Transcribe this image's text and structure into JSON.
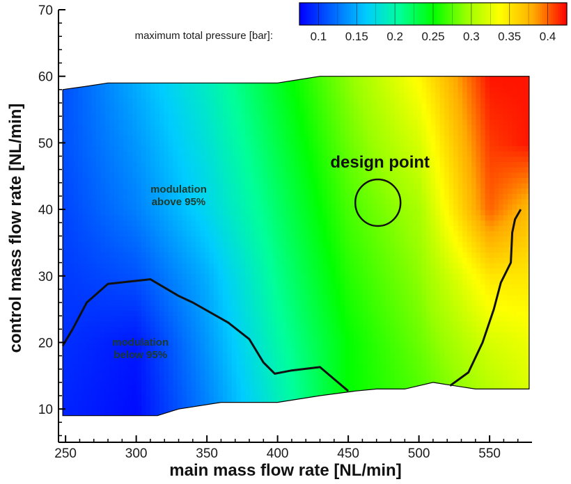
{
  "chart_data": {
    "type": "heatmap",
    "title": "",
    "xlabel": "main mass flow rate [NL/min]",
    "ylabel": "control mass flow rate [NL/min]",
    "xlim": [
      245,
      580
    ],
    "ylim": [
      5,
      70
    ],
    "x_ticks": [
      250,
      300,
      350,
      400,
      450,
      500,
      550
    ],
    "y_ticks": [
      10,
      20,
      30,
      40,
      50,
      60,
      70
    ],
    "colorbar": {
      "title": "maximum total pressure [bar]:",
      "range": [
        0.075,
        0.425
      ],
      "ticks": [
        0.1,
        0.15,
        0.2,
        0.25,
        0.3,
        0.35,
        0.4
      ],
      "tick_labels": [
        "0.1",
        "0.15",
        "0.2",
        "0.25",
        "0.3",
        "0.35",
        "0.4"
      ],
      "colormap": [
        "#0000ff",
        "#0066ff",
        "#00ccff",
        "#00ff99",
        "#00ff00",
        "#99ff00",
        "#ffff00",
        "#ffaa00",
        "#ff0000"
      ]
    },
    "domain_boundary": [
      [
        248,
        58
      ],
      [
        265,
        58.5
      ],
      [
        280,
        59
      ],
      [
        350,
        59
      ],
      [
        400,
        59
      ],
      [
        415,
        59.5
      ],
      [
        430,
        60
      ],
      [
        500,
        60
      ],
      [
        578,
        60
      ],
      [
        578,
        13
      ],
      [
        555,
        13
      ],
      [
        540,
        13
      ],
      [
        525,
        13.5
      ],
      [
        510,
        14
      ],
      [
        490,
        13
      ],
      [
        470,
        13
      ],
      [
        455,
        12.7
      ],
      [
        430,
        12
      ],
      [
        400,
        11
      ],
      [
        380,
        11
      ],
      [
        360,
        11
      ],
      [
        330,
        10
      ],
      [
        315,
        9
      ],
      [
        300,
        9
      ],
      [
        248,
        9
      ]
    ],
    "pressure_samples": [
      {
        "x": 250,
        "y": 10,
        "p": 0.09
      },
      {
        "x": 300,
        "y": 10,
        "p": 0.08
      },
      {
        "x": 350,
        "y": 10,
        "p": 0.13
      },
      {
        "x": 400,
        "y": 10,
        "p": 0.19
      },
      {
        "x": 450,
        "y": 10,
        "p": 0.25
      },
      {
        "x": 500,
        "y": 10,
        "p": 0.27
      },
      {
        "x": 550,
        "y": 10,
        "p": 0.3
      },
      {
        "x": 580,
        "y": 10,
        "p": 0.32
      },
      {
        "x": 250,
        "y": 20,
        "p": 0.095
      },
      {
        "x": 300,
        "y": 20,
        "p": 0.085
      },
      {
        "x": 350,
        "y": 20,
        "p": 0.14
      },
      {
        "x": 400,
        "y": 20,
        "p": 0.2
      },
      {
        "x": 450,
        "y": 20,
        "p": 0.25
      },
      {
        "x": 500,
        "y": 20,
        "p": 0.28
      },
      {
        "x": 550,
        "y": 20,
        "p": 0.32
      },
      {
        "x": 580,
        "y": 20,
        "p": 0.33
      },
      {
        "x": 250,
        "y": 30,
        "p": 0.1
      },
      {
        "x": 300,
        "y": 30,
        "p": 0.11
      },
      {
        "x": 350,
        "y": 30,
        "p": 0.15
      },
      {
        "x": 400,
        "y": 30,
        "p": 0.21
      },
      {
        "x": 450,
        "y": 30,
        "p": 0.26
      },
      {
        "x": 500,
        "y": 30,
        "p": 0.29
      },
      {
        "x": 550,
        "y": 30,
        "p": 0.35
      },
      {
        "x": 580,
        "y": 30,
        "p": 0.35
      },
      {
        "x": 250,
        "y": 40,
        "p": 0.105
      },
      {
        "x": 300,
        "y": 40,
        "p": 0.13
      },
      {
        "x": 350,
        "y": 40,
        "p": 0.17
      },
      {
        "x": 400,
        "y": 40,
        "p": 0.22
      },
      {
        "x": 450,
        "y": 40,
        "p": 0.27
      },
      {
        "x": 500,
        "y": 40,
        "p": 0.3
      },
      {
        "x": 550,
        "y": 40,
        "p": 0.4
      },
      {
        "x": 580,
        "y": 40,
        "p": 0.37
      },
      {
        "x": 250,
        "y": 50,
        "p": 0.11
      },
      {
        "x": 300,
        "y": 50,
        "p": 0.14
      },
      {
        "x": 350,
        "y": 50,
        "p": 0.18
      },
      {
        "x": 400,
        "y": 50,
        "p": 0.23
      },
      {
        "x": 450,
        "y": 50,
        "p": 0.28
      },
      {
        "x": 500,
        "y": 50,
        "p": 0.32
      },
      {
        "x": 550,
        "y": 50,
        "p": 0.41
      },
      {
        "x": 580,
        "y": 50,
        "p": 0.42
      },
      {
        "x": 250,
        "y": 60,
        "p": 0.11
      },
      {
        "x": 300,
        "y": 60,
        "p": 0.15
      },
      {
        "x": 350,
        "y": 60,
        "p": 0.19
      },
      {
        "x": 400,
        "y": 60,
        "p": 0.24
      },
      {
        "x": 450,
        "y": 60,
        "p": 0.29
      },
      {
        "x": 500,
        "y": 60,
        "p": 0.34
      },
      {
        "x": 550,
        "y": 60,
        "p": 0.42
      },
      {
        "x": 580,
        "y": 60,
        "p": 0.42
      }
    ],
    "contour_95_lower": [
      [
        248,
        19.5
      ],
      [
        255,
        22
      ],
      [
        265,
        26
      ],
      [
        280,
        28.8
      ],
      [
        310,
        29.5
      ],
      [
        330,
        27
      ],
      [
        340,
        26
      ],
      [
        365,
        23
      ],
      [
        380,
        20.5
      ],
      [
        390,
        17
      ],
      [
        398,
        15.3
      ],
      [
        410,
        15.8
      ],
      [
        430,
        16.3
      ],
      [
        440,
        14.5
      ],
      [
        450,
        12.7
      ]
    ],
    "contour_95_right": [
      [
        522,
        13.5
      ],
      [
        535,
        15.5
      ],
      [
        545,
        20
      ],
      [
        553,
        25
      ],
      [
        558,
        29
      ],
      [
        565,
        32
      ],
      [
        566,
        36.5
      ],
      [
        568,
        38.5
      ],
      [
        572,
        40
      ]
    ],
    "design_point": {
      "x": 471,
      "y": 41,
      "radius_x_units": 16,
      "label": "design point"
    },
    "annotations": [
      {
        "id": "above",
        "lines": [
          "modulation",
          "above 95%"
        ],
        "x": 330,
        "y": 42.5
      },
      {
        "id": "below",
        "lines": [
          "modulation",
          "below 95%"
        ],
        "x": 303,
        "y": 19.5
      }
    ]
  }
}
